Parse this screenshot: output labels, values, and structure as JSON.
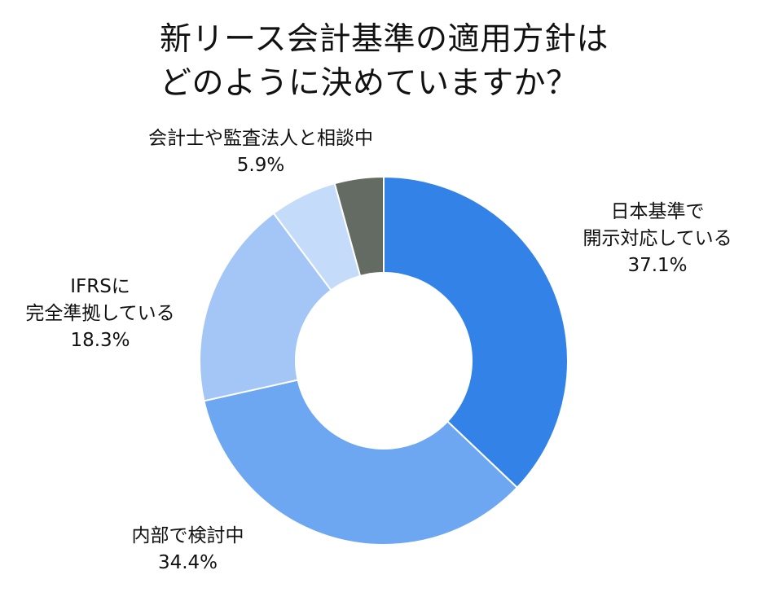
{
  "title_lines": [
    "新リース会計基準の適用方針は",
    "どのように決めていますか？"
  ],
  "chart_data": {
    "type": "pie",
    "donut": true,
    "title": "新リース会計基準の適用方針はどのように決めていますか？",
    "unit": "%",
    "slices": [
      {
        "label_lines": [
          "日本基準で",
          "開示対応している"
        ],
        "value": 37.1,
        "value_label": "37.1%",
        "color": "#3282E8"
      },
      {
        "label_lines": [
          "内部で検討中"
        ],
        "value": 34.4,
        "value_label": "34.4%",
        "color": "#6EA7F1"
      },
      {
        "label_lines": [
          "IFRSに",
          "完全準拠している"
        ],
        "value": 18.3,
        "value_label": "18.3%",
        "color": "#A3C6F7"
      },
      {
        "label_lines": [
          "会計士や監査法人と相談中"
        ],
        "value": 5.9,
        "value_label": "5.9%",
        "color": "#C4DBF9"
      },
      {
        "label_lines": [],
        "value": 4.3,
        "value_label": "",
        "color": "#636B62"
      }
    ]
  }
}
